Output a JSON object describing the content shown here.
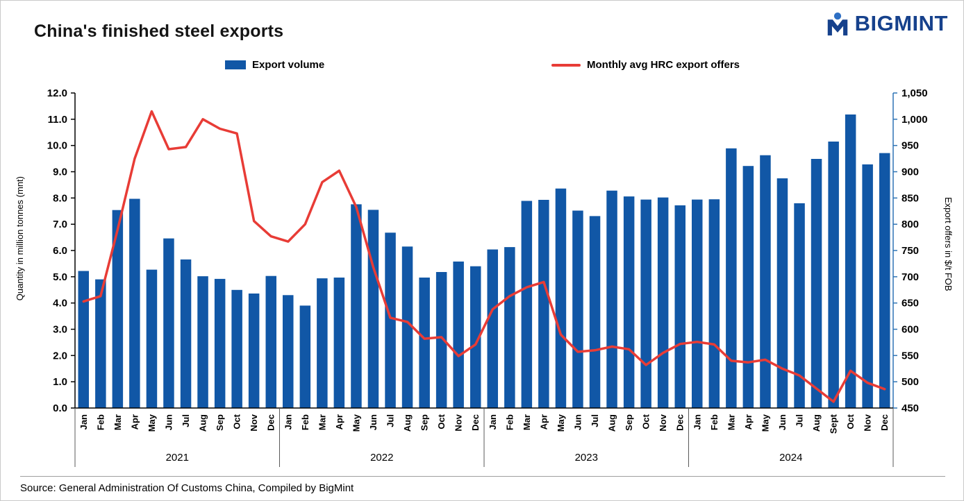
{
  "header": {
    "title": "China's finished steel exports",
    "brand": "BIGMINT"
  },
  "legend": {
    "bar_label": "Export volume",
    "line_label": "Monthly avg HRC export offers"
  },
  "footer": {
    "source": "Source: General Administration Of Customs China, Compiled by BigMint"
  },
  "chart_data": {
    "type": "combo",
    "title": "China's finished steel exports",
    "grid": false,
    "legend_position": "top",
    "years": [
      {
        "year": "2021",
        "months": [
          "Jan",
          "Feb",
          "Mar",
          "Apr",
          "May",
          "Jun",
          "Jul",
          "Aug",
          "Sep",
          "Oct",
          "Nov",
          "Dec"
        ]
      },
      {
        "year": "2022",
        "months": [
          "Jan",
          "Feb",
          "Mar",
          "Apr",
          "May",
          "Jun",
          "Jul",
          "Aug",
          "Sep",
          "Oct",
          "Nov",
          "Dec"
        ]
      },
      {
        "year": "2023",
        "months": [
          "Jan",
          "Feb",
          "Mar",
          "Apr",
          "May",
          "Jun",
          "Jul",
          "Aug",
          "Sep",
          "Oct",
          "Nov",
          "Dec"
        ]
      },
      {
        "year": "2024",
        "months": [
          "Jan",
          "Feb",
          "Mar",
          "Apr",
          "May",
          "Jun",
          "Jul",
          "Aug",
          "Sept",
          "Oct",
          "Nov",
          "Dec"
        ]
      }
    ],
    "left_axis": {
      "label": "Quantity in million tonnes (mnt)",
      "min": 0,
      "max": 12,
      "step": 1
    },
    "right_axis": {
      "label": "Export offers in $/t FOB",
      "min": 450,
      "max": 1050,
      "step": 50,
      "color": "#2e74b5"
    },
    "series": [
      {
        "name": "Export volume",
        "chart_type": "bar",
        "axis": "left",
        "color": "#1157a6",
        "values": [
          5.22,
          4.9,
          7.54,
          7.97,
          5.27,
          6.46,
          5.66,
          5.02,
          4.92,
          4.5,
          4.36,
          5.03,
          4.3,
          3.9,
          4.94,
          4.97,
          7.76,
          7.55,
          6.68,
          6.15,
          4.97,
          5.18,
          5.58,
          5.4,
          6.04,
          6.13,
          7.89,
          7.93,
          8.36,
          7.52,
          7.31,
          8.28,
          8.06,
          7.94,
          8.02,
          7.72,
          7.94,
          7.95,
          9.89,
          9.22,
          9.63,
          8.75,
          7.8,
          9.49,
          10.15,
          11.18,
          9.28,
          9.71
        ]
      },
      {
        "name": "Monthly avg HRC export offers",
        "chart_type": "line",
        "axis": "right",
        "color": "#e83c36",
        "values": [
          653,
          663,
          790,
          925,
          1015,
          943,
          947,
          1000,
          982,
          973,
          806,
          777,
          767,
          800,
          880,
          902,
          833,
          718,
          622,
          614,
          582,
          585,
          549,
          571,
          638,
          663,
          680,
          690,
          590,
          557,
          560,
          567,
          562,
          532,
          555,
          572,
          576,
          571,
          540,
          537,
          542,
          525,
          512,
          487,
          462,
          521,
          498,
          486
        ]
      }
    ]
  }
}
